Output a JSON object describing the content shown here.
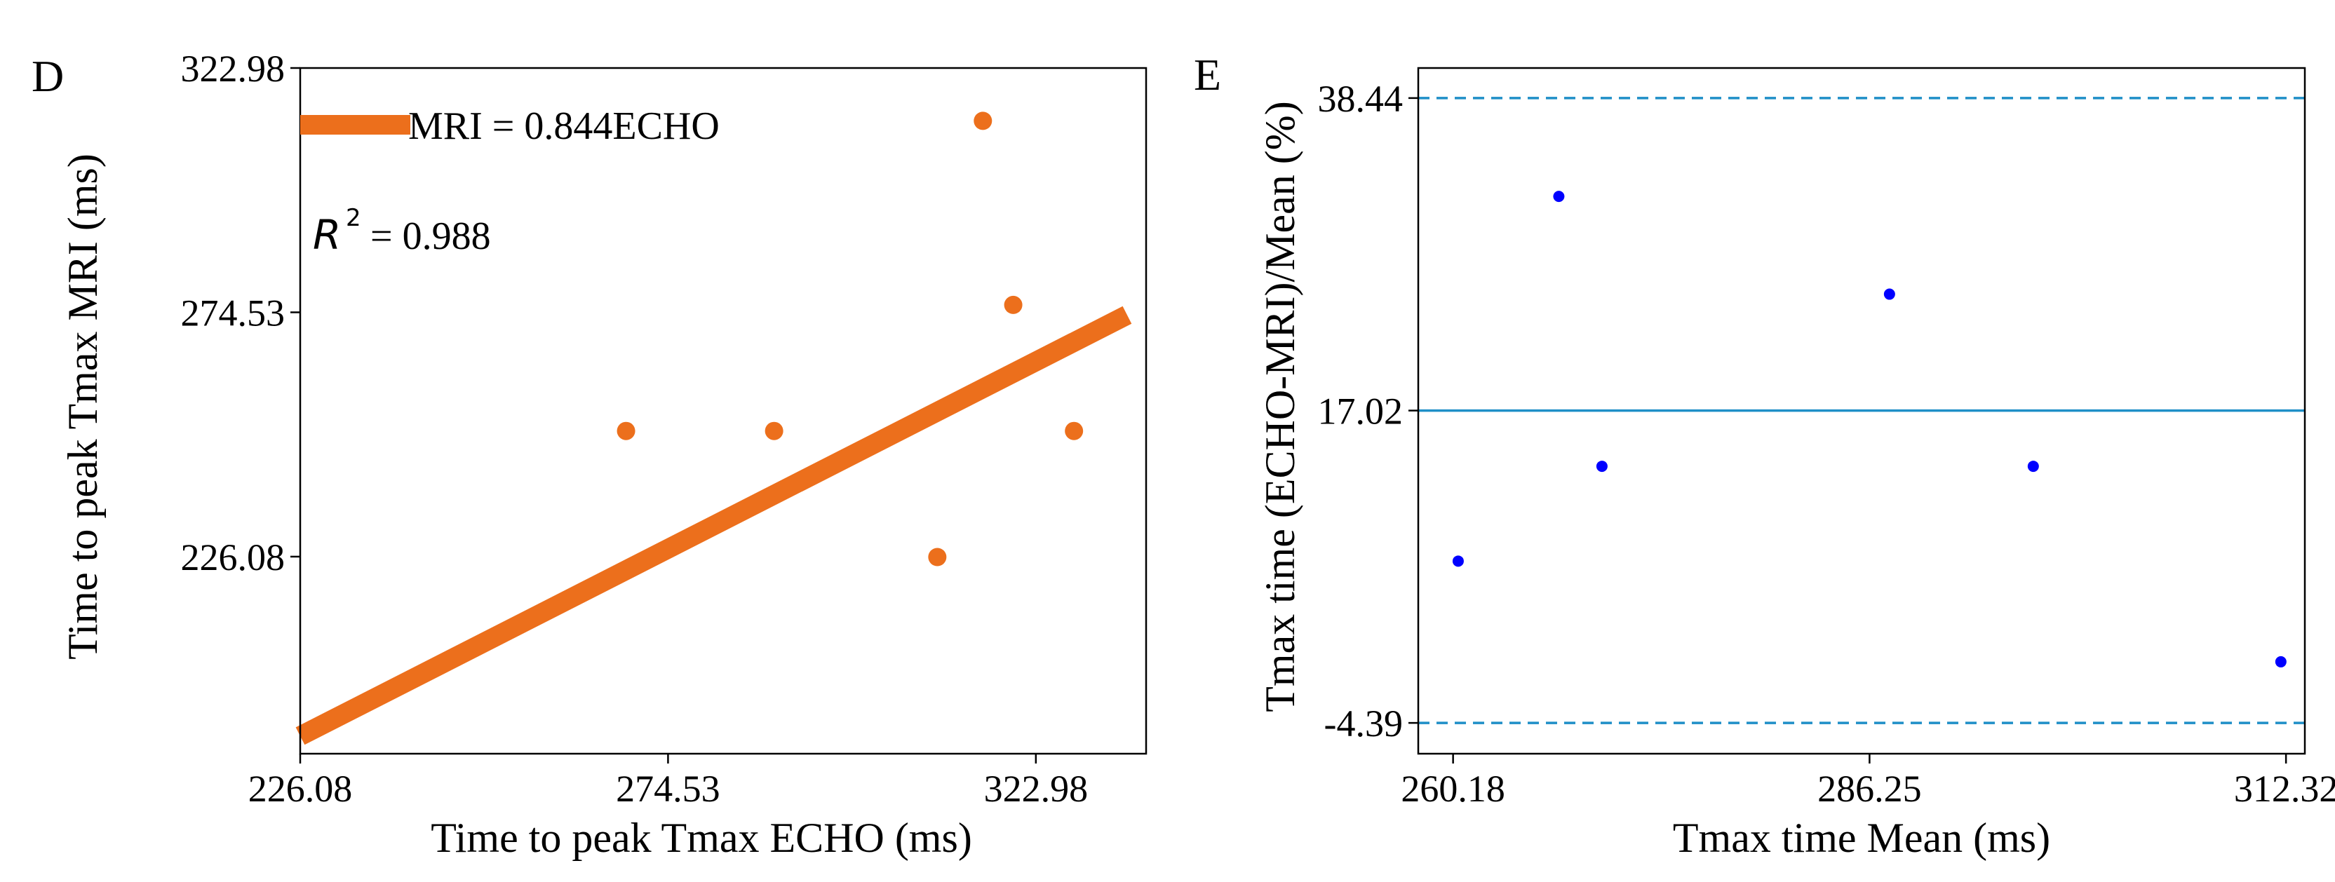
{
  "chart_data": [
    {
      "panel": "D",
      "type": "scatter",
      "xlabel": "Time to peak Tmax ECHO (ms)",
      "ylabel": "Time to peak Tmax MRI (ms)",
      "xlim": [
        226.08,
        337.5
      ],
      "ylim": [
        187.0,
        322.98
      ],
      "xticks": [
        226.08,
        274.53,
        322.98
      ],
      "xtick_labels": [
        "226.08",
        "274.53",
        "322.98"
      ],
      "yticks": [
        226.08,
        274.53,
        322.98
      ],
      "ytick_labels": [
        "226.08",
        "274.53",
        "322.98"
      ],
      "points": [
        {
          "x": 269.0,
          "y": 251.0
        },
        {
          "x": 288.5,
          "y": 251.0
        },
        {
          "x": 310.0,
          "y": 226.0
        },
        {
          "x": 316.0,
          "y": 312.5
        },
        {
          "x": 320.0,
          "y": 276.0
        },
        {
          "x": 328.0,
          "y": 251.0
        }
      ],
      "fit_line": {
        "x": [
          226.08,
          335.0
        ],
        "y": [
          190.5,
          274.0
        ]
      },
      "legend": "top-left",
      "legend_label": "MRI = 0.844ECHO",
      "r2_symbol": "R",
      "r2_exponent": "2",
      "r2_value": "= 0.988",
      "color": "#ec6f1c"
    },
    {
      "panel": "E",
      "type": "scatter",
      "xlabel": "Tmax time Mean (ms)",
      "ylabel": "Tmax time (ECHO-MRI)/Mean (%)",
      "xlim": [
        258.0,
        313.5
      ],
      "ylim": [
        -6.5,
        40.5
      ],
      "xticks": [
        260.18,
        286.25,
        312.32
      ],
      "xtick_labels": [
        "260.18",
        "286.25",
        "312.32"
      ],
      "yticks": [
        38.44,
        17.02,
        -4.39
      ],
      "ytick_labels": [
        "38.44",
        "17.02",
        "-4.39"
      ],
      "points": [
        {
          "x": 260.5,
          "y": 6.7
        },
        {
          "x": 266.8,
          "y": 31.7
        },
        {
          "x": 269.5,
          "y": 13.2
        },
        {
          "x": 287.5,
          "y": 25.0
        },
        {
          "x": 296.5,
          "y": 13.2
        },
        {
          "x": 312.0,
          "y": -0.2
        }
      ],
      "mean_line": 17.02,
      "limits_of_agreement": [
        38.44,
        -4.39
      ],
      "point_color": "#0000ff",
      "line_color": "#1f8fc7"
    }
  ]
}
